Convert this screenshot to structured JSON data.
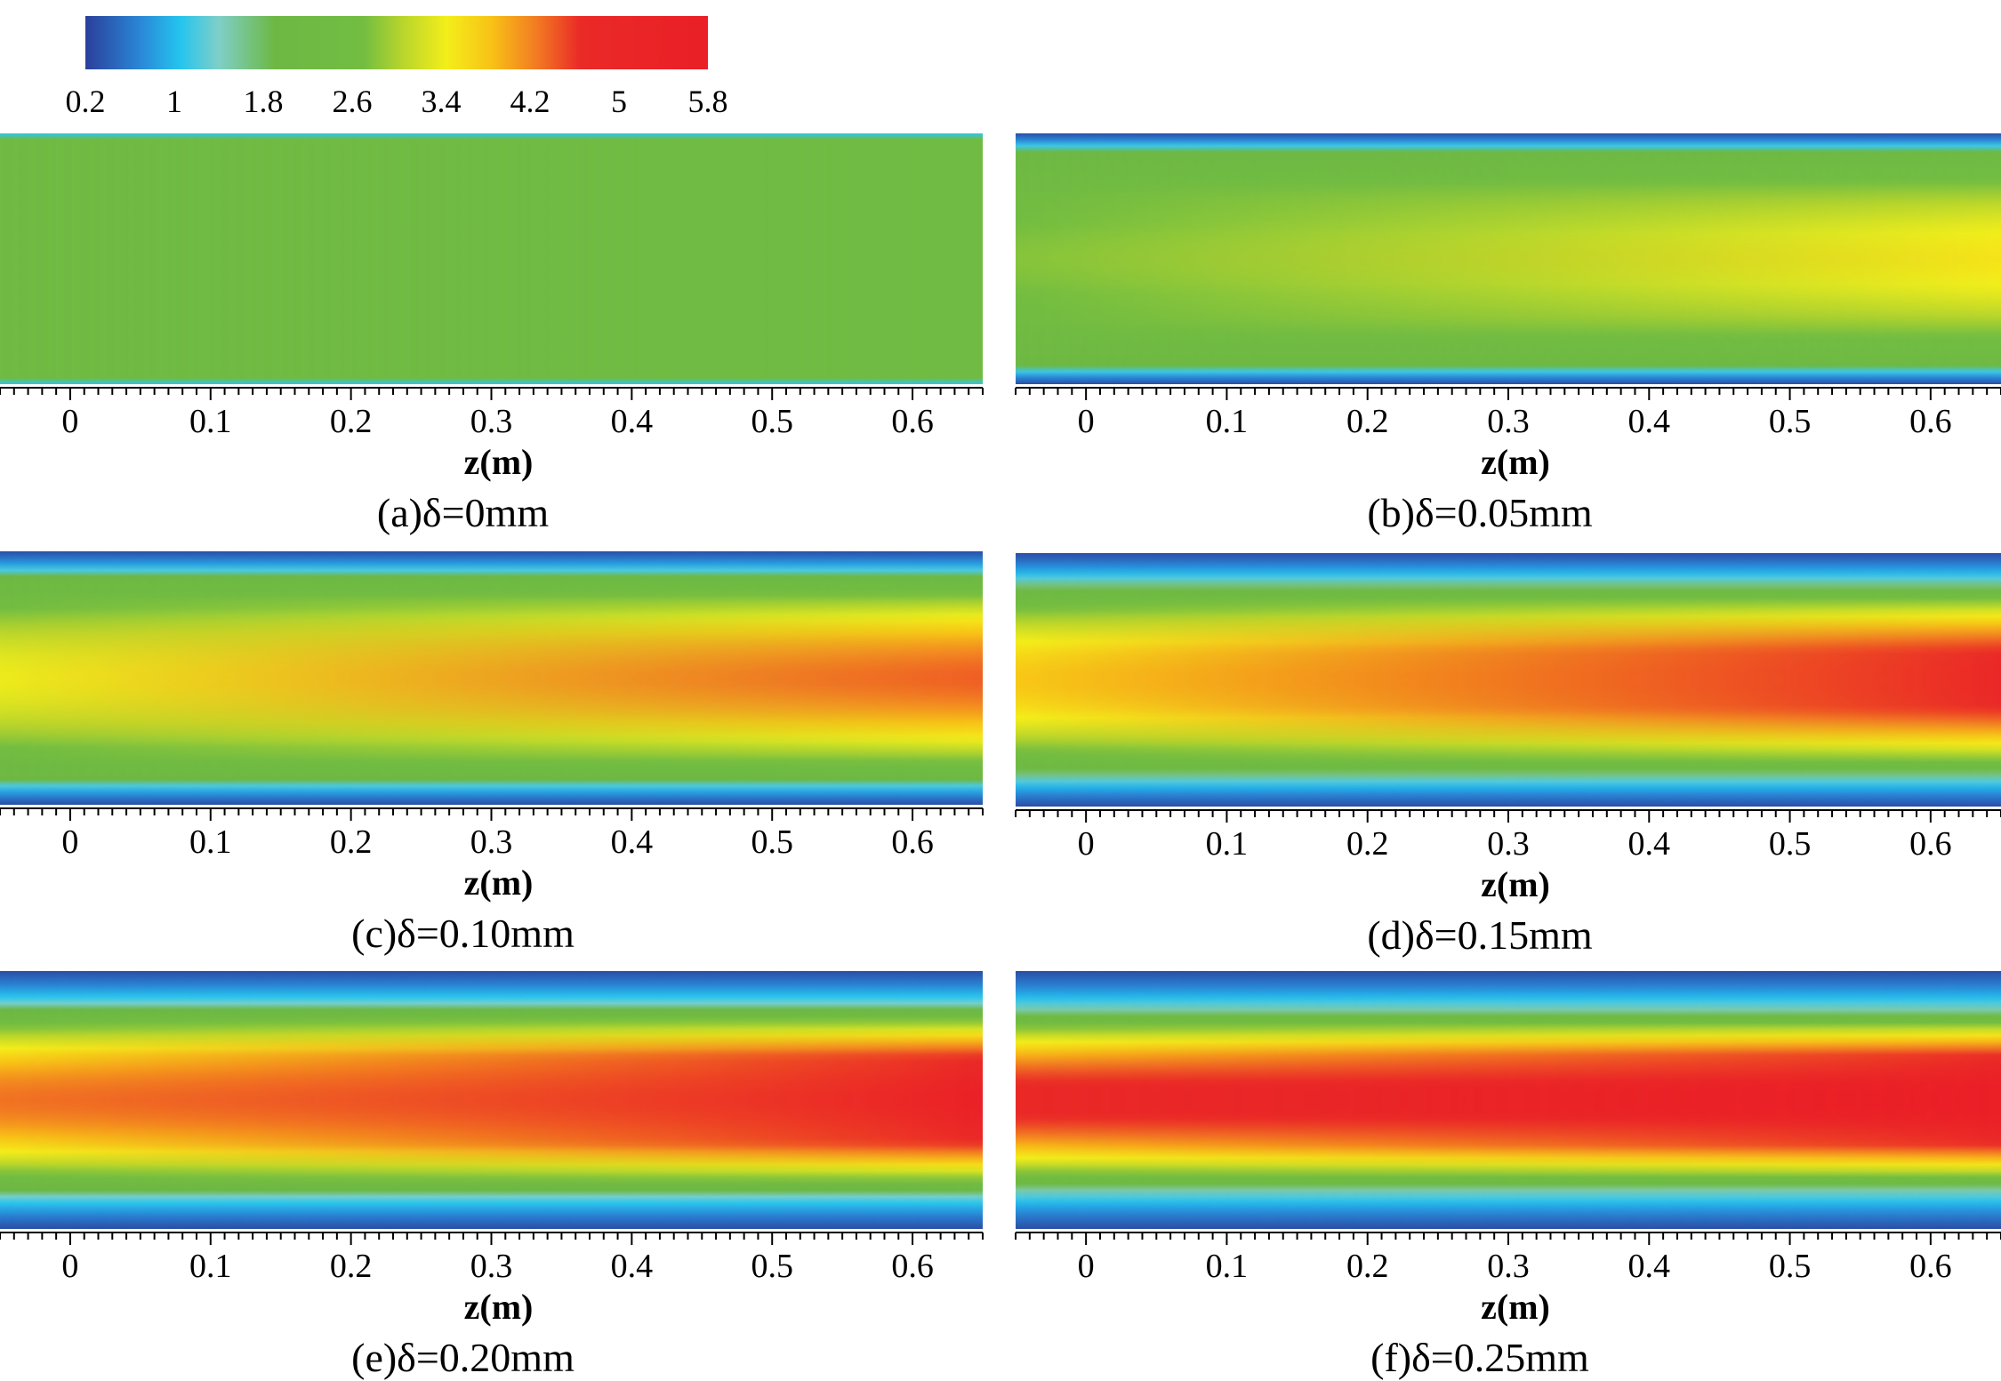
{
  "chart_data": {
    "type": "heatmap",
    "colorbar": {
      "ticks": [
        "0.2",
        "1",
        "1.8",
        "2.6",
        "3.4",
        "4.2",
        "5",
        "5.8"
      ],
      "range": [
        0.2,
        5.8
      ],
      "stops": [
        {
          "value": 0.2,
          "color": "#2b3f9a"
        },
        {
          "value": 0.7,
          "color": "#2a88d8"
        },
        {
          "value": 1.05,
          "color": "#24c4ee"
        },
        {
          "value": 1.4,
          "color": "#7fcfc8"
        },
        {
          "value": 1.9,
          "color": "#6db844"
        },
        {
          "value": 2.7,
          "color": "#72bd42"
        },
        {
          "value": 3.05,
          "color": "#b7d52c"
        },
        {
          "value": 3.45,
          "color": "#f4ee1a"
        },
        {
          "value": 3.85,
          "color": "#f8c216"
        },
        {
          "value": 4.25,
          "color": "#f27d22"
        },
        {
          "value": 4.65,
          "color": "#ea2a27"
        },
        {
          "value": 5.8,
          "color": "#ea1f27"
        }
      ]
    },
    "xaxis": {
      "label": "z(m)",
      "range": [
        -0.05,
        0.65
      ],
      "ticks": [
        0,
        0.1,
        0.2,
        0.3,
        0.4,
        0.5,
        0.6
      ],
      "tick_labels": [
        "0",
        "0.1",
        "0.2",
        "0.3",
        "0.4",
        "0.5",
        "0.6"
      ]
    },
    "panels": [
      {
        "id": "a",
        "caption": "(a)δ=0mm",
        "wall_value": 1.1,
        "wall_fraction": 0.03,
        "core_start": 2.38,
        "core_end": 2.38
      },
      {
        "id": "b",
        "caption": "(b)δ=0.05mm",
        "wall_value": 0.3,
        "wall_fraction": 0.14,
        "core_start": 2.8,
        "core_end": 3.55
      },
      {
        "id": "c",
        "caption": "(c)δ=0.10mm",
        "wall_value": 0.3,
        "wall_fraction": 0.2,
        "core_start": 3.4,
        "core_end": 4.4
      },
      {
        "id": "d",
        "caption": "(d)δ=0.15mm",
        "wall_value": 0.3,
        "wall_fraction": 0.26,
        "core_start": 3.8,
        "core_end": 5.0
      },
      {
        "id": "e",
        "caption": "(e)δ=0.20mm",
        "wall_value": 0.3,
        "wall_fraction": 0.3,
        "core_start": 4.3,
        "core_end": 5.6
      },
      {
        "id": "f",
        "caption": "(f)δ=0.25mm",
        "wall_value": 0.3,
        "wall_fraction": 0.33,
        "core_start": 4.8,
        "core_end": 5.8
      }
    ]
  }
}
